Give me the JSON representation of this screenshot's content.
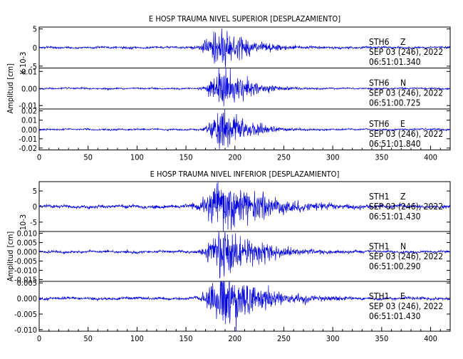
{
  "colors": {
    "trace": "#0000dd",
    "axes": "#000000",
    "background": "#ffffff"
  },
  "chart_data": [
    {
      "type": "line",
      "title": "E HOSP TRAUMA NIVEL SUPERIOR [DESPLAZAMIENTO]",
      "ylabel": "Amplitud [cm]",
      "xlim": [
        0,
        420
      ],
      "x_ticks": [
        "0",
        "50",
        "100",
        "150",
        "200",
        "250",
        "300",
        "350",
        "400"
      ],
      "traces": [
        {
          "station": "STH6",
          "component": "Z",
          "date": "SEP 03 (246), 2022",
          "time": "06:51:01.340",
          "scale_label": "X 10-3",
          "ylim": [
            -5.5,
            5.5
          ],
          "y_ticks": [
            -5,
            0,
            5
          ],
          "y_tick_labels": [
            "-5",
            "0",
            "5"
          ],
          "noise": 0.25,
          "burst_peak": 5.0,
          "burst_center": 188,
          "burst_rise": 12,
          "burst_decay": 28
        },
        {
          "station": "STH6",
          "component": "N",
          "date": "SEP 03 (246), 2022",
          "time": "06:51:00.725",
          "ylim": [
            -0.012,
            0.012
          ],
          "y_ticks": [
            -0.01,
            0,
            0.01
          ],
          "y_tick_labels": [
            "-0.01",
            "0.00",
            "0.01"
          ],
          "noise": 0.0004,
          "burst_peak": 0.011,
          "burst_center": 190,
          "burst_rise": 10,
          "burst_decay": 25
        },
        {
          "station": "STH6",
          "component": "E",
          "date": "SEP 03 (246), 2022",
          "time": "06:51:01.840",
          "ylim": [
            -0.022,
            0.022
          ],
          "y_ticks": [
            -0.02,
            -0.01,
            0,
            0.01,
            0.02
          ],
          "y_tick_labels": [
            "-0.02",
            "-0.01",
            "0.00",
            "0.01",
            "0.02"
          ],
          "noise": 0.0008,
          "burst_peak": 0.02,
          "burst_center": 189,
          "burst_rise": 10,
          "burst_decay": 25
        }
      ]
    },
    {
      "type": "line",
      "title": "E HOSP TRAUMA NIVEL INFERIOR [DESPLAZAMIENTO]",
      "ylabel": "Amplitud [cm]",
      "xlim": [
        0,
        420
      ],
      "x_ticks": [
        "0",
        "50",
        "100",
        "150",
        "200",
        "250",
        "300",
        "350",
        "400"
      ],
      "traces": [
        {
          "station": "STH1",
          "component": "Z",
          "date": "SEP 03 (246), 2022",
          "time": "06:51:01.430",
          "scale_label": "10-3",
          "ylim": [
            -8,
            8
          ],
          "y_ticks": [
            -5,
            0,
            5
          ],
          "y_tick_labels": [
            "-5",
            "0",
            "5"
          ],
          "noise": 0.5,
          "burst_peak": 7.5,
          "burst_center": 190,
          "burst_rise": 14,
          "burst_decay": 45
        },
        {
          "station": "STH1",
          "component": "N",
          "date": "SEP 03 (246), 2022",
          "time": "06:51:00.290",
          "ylim": [
            -0.016,
            0.011
          ],
          "y_ticks": [
            -0.015,
            -0.01,
            -0.005,
            0,
            0.005,
            0.01
          ],
          "y_tick_labels": [
            "-0.015",
            "-0.010",
            "-0.005",
            "0.000",
            "0.005",
            "0.010"
          ],
          "noise": 0.0006,
          "burst_peak": 0.011,
          "burst_center": 190,
          "burst_rise": 12,
          "burst_decay": 40
        },
        {
          "station": "STH1",
          "component": "E",
          "date": "SEP 03 (246), 2022",
          "time": "06:51:01.430",
          "ylim": [
            -0.0105,
            0.0055
          ],
          "y_ticks": [
            -0.01,
            -0.005,
            0,
            0.005
          ],
          "y_tick_labels": [
            "-0.010",
            "-0.005",
            "0.000",
            "0.005"
          ],
          "noise": 0.0004,
          "burst_peak": 0.0085,
          "burst_center": 189,
          "burst_rise": 12,
          "burst_decay": 40
        }
      ]
    }
  ]
}
